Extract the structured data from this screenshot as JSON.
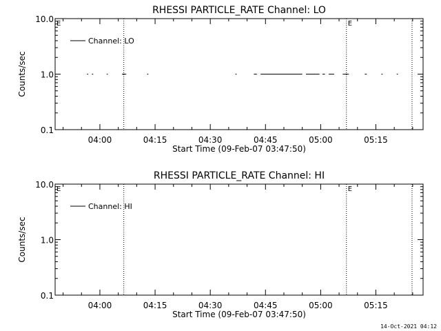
{
  "footer": {
    "timestamp": "14-Oct-2021 04:12"
  },
  "colors": {
    "background": "#ffffff",
    "ink": "#000000"
  },
  "chart_data": [
    {
      "type": "line",
      "title": "RHESSI PARTICLE_RATE Channel: LO",
      "xlabel": "Start Time (09-Feb-07 03:47:50)",
      "ylabel": "Counts/sec",
      "y_scale": "log",
      "ylim": [
        0.1,
        10.0
      ],
      "y_ticks": [
        "0.1",
        "1.0",
        "10.0"
      ],
      "x_range": [
        "03:47:50",
        "05:27:50"
      ],
      "x_ticks": [
        "04:00",
        "04:15",
        "04:30",
        "04:45",
        "05:00",
        "05:15"
      ],
      "grid": false,
      "legend": {
        "position": "top-left",
        "entries": [
          "Channel: LO"
        ]
      },
      "markers": [
        {
          "time": "04:06:30",
          "label": ""
        },
        {
          "time": "05:07:00",
          "label": "E"
        },
        {
          "time": "05:24:50",
          "label": ""
        }
      ],
      "edge_label": "E",
      "series": [
        {
          "name": "Channel: LO",
          "value": 1.0,
          "segments": [
            [
              "03:56:30",
              "03:56:50"
            ],
            [
              "03:57:50",
              "03:58:10"
            ],
            [
              "04:01:50",
              "04:02:10"
            ],
            [
              "04:06:00",
              "04:07:10"
            ],
            [
              "04:12:50",
              "04:13:10"
            ],
            [
              "04:36:50",
              "04:37:10"
            ],
            [
              "04:41:50",
              "04:42:40"
            ],
            [
              "04:43:40",
              "04:55:00"
            ],
            [
              "04:56:00",
              "04:59:40"
            ],
            [
              "05:00:30",
              "05:01:10"
            ],
            [
              "05:02:10",
              "05:03:40"
            ],
            [
              "05:06:00",
              "05:07:40"
            ],
            [
              "05:12:00",
              "05:12:30"
            ],
            [
              "05:16:30",
              "05:16:50"
            ],
            [
              "05:20:40",
              "05:21:00"
            ]
          ]
        }
      ]
    },
    {
      "type": "line",
      "title": "RHESSI PARTICLE_RATE Channel: HI",
      "xlabel": "Start Time (09-Feb-07 03:47:50)",
      "ylabel": "Counts/sec",
      "y_scale": "log",
      "ylim": [
        0.1,
        10.0
      ],
      "y_ticks": [
        "0.1",
        "1.0",
        "10.0"
      ],
      "x_range": [
        "03:47:50",
        "05:27:50"
      ],
      "x_ticks": [
        "04:00",
        "04:15",
        "04:30",
        "04:45",
        "05:00",
        "05:15"
      ],
      "grid": false,
      "legend": {
        "position": "top-left",
        "entries": [
          "Channel: HI"
        ]
      },
      "markers": [
        {
          "time": "04:06:30",
          "label": ""
        },
        {
          "time": "05:07:00",
          "label": "E"
        },
        {
          "time": "05:24:50",
          "label": ""
        }
      ],
      "edge_label": "E",
      "series": [
        {
          "name": "Channel: HI",
          "value": 1.0,
          "segments": []
        }
      ]
    }
  ]
}
